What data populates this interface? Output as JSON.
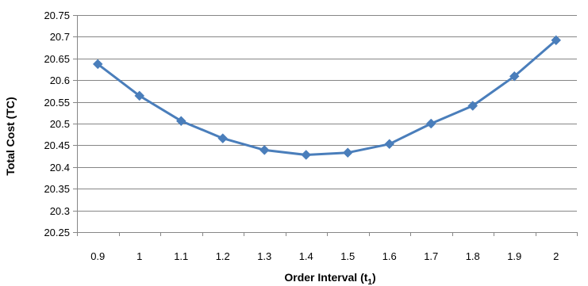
{
  "chart_data": {
    "type": "line",
    "title": "",
    "xlabel_main": "Order Interval (t",
    "xlabel_sub": "1",
    "xlabel_close": ")",
    "ylabel": "Total Cost (TC)",
    "ylim": [
      20.25,
      20.75
    ],
    "ytick_step": 0.05,
    "yticks": [
      "20.25",
      "20.3",
      "20.35",
      "20.4",
      "20.45",
      "20.5",
      "20.55",
      "20.6",
      "20.65",
      "20.7",
      "20.75"
    ],
    "categories": [
      "0.9",
      "1",
      "1.1",
      "1.2",
      "1.3",
      "1.4",
      "1.5",
      "1.6",
      "1.7",
      "1.8",
      "1.9",
      "2"
    ],
    "series": [
      {
        "values": [
          20.637,
          20.564,
          20.506,
          20.466,
          20.439,
          20.428,
          20.433,
          20.453,
          20.5,
          20.541,
          20.609,
          20.692
        ],
        "color": "#4a7ebb",
        "marker": "diamond"
      }
    ],
    "grid": {
      "horizontal": true,
      "vertical": false
    },
    "legend": "none"
  }
}
